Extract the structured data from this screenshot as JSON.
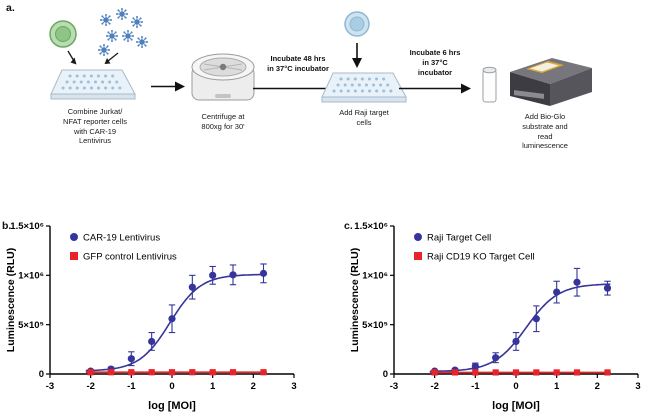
{
  "panels": {
    "a_label": "a.",
    "b_label": "b.",
    "c_label": "c."
  },
  "workflow": {
    "steps": [
      {
        "caption": "Combine Jurkat/\nNFAT reporter cells\nwith CAR-19\nLentivirus"
      },
      {
        "caption": "Centrifuge at\n800xg for 30'"
      },
      {
        "caption": "Add Raji target\ncells"
      },
      {
        "caption": "Add Bio-Glo\nsubstrate and\nread\nluminescence"
      }
    ],
    "arrow_labels": {
      "incubate_48": "Incubate 48 hrs\nin 37°C incubator",
      "incubate_6": "Incubate 6 hrs\nin 37°C\nincubator"
    }
  },
  "chart_data": [
    {
      "id": "b",
      "type": "scatter",
      "title": "",
      "xlabel": "log [MOI]",
      "ylabel": "Luminescence (RLU)",
      "xlim": [
        -3,
        3
      ],
      "ylim": [
        0,
        1500000
      ],
      "xticks": [
        -3,
        -2,
        -1,
        0,
        1,
        2,
        3
      ],
      "xtick_labels": [
        "-3",
        "-2",
        "-1",
        "0",
        "1",
        "2",
        "3"
      ],
      "yticks": [
        0,
        500000,
        1000000,
        1500000
      ],
      "ytick_labels": [
        "0",
        "5×10⁵",
        "1×10⁶",
        "1.5×10⁶"
      ],
      "legend_position": "top-left-inside",
      "grid": false,
      "series": [
        {
          "name": "CAR-19 Lentivirus",
          "color": "#35359b",
          "marker": "circle",
          "x": [
            -2,
            -1.5,
            -1,
            -0.5,
            0,
            0.5,
            1,
            1.5,
            2.25
          ],
          "y": [
            30000,
            50000,
            155000,
            330000,
            560000,
            880000,
            1000000,
            1005000,
            1020000
          ],
          "err": [
            15000,
            20000,
            70000,
            90000,
            140000,
            120000,
            90000,
            100000,
            95000
          ],
          "fit": {
            "type": "sigmoid",
            "bottom": 30000,
            "top": 1010000,
            "logec50": -0.05,
            "hill": 1.15
          }
        },
        {
          "name": "GFP control Lentivirus",
          "color": "#e62429",
          "marker": "square",
          "x": [
            -2,
            -1.5,
            -1,
            -0.5,
            0,
            0.5,
            1,
            1.5,
            2.25
          ],
          "y": [
            18000,
            18000,
            18000,
            18000,
            18000,
            18000,
            18000,
            18000,
            18000
          ],
          "err": [
            5000,
            5000,
            5000,
            5000,
            5000,
            5000,
            5000,
            5000,
            5000
          ],
          "fit": {
            "type": "flat",
            "value": 18000
          }
        }
      ]
    },
    {
      "id": "c",
      "type": "scatter",
      "title": "",
      "xlabel": "log [MOI]",
      "ylabel": "Luminescence (RLU)",
      "xlim": [
        -3,
        3
      ],
      "ylim": [
        0,
        1500000
      ],
      "xticks": [
        -3,
        -2,
        -1,
        0,
        1,
        2,
        3
      ],
      "xtick_labels": [
        "-3",
        "-2",
        "-1",
        "0",
        "1",
        "2",
        "3"
      ],
      "yticks": [
        0,
        500000,
        1000000,
        1500000
      ],
      "ytick_labels": [
        "0",
        "5×10⁵",
        "1×10⁶",
        "1.5×10⁶"
      ],
      "legend_position": "top-left-inside",
      "grid": false,
      "series": [
        {
          "name": "Raji Target Cell",
          "color": "#35359b",
          "marker": "circle",
          "x": [
            -2,
            -1.5,
            -1,
            -0.5,
            0,
            0.5,
            1,
            1.5,
            2.25
          ],
          "y": [
            30000,
            40000,
            80000,
            165000,
            330000,
            560000,
            830000,
            930000,
            870000
          ],
          "err": [
            10000,
            15000,
            30000,
            50000,
            90000,
            130000,
            110000,
            140000,
            70000
          ],
          "fit": {
            "type": "sigmoid",
            "bottom": 25000,
            "top": 915000,
            "logec50": 0.25,
            "hill": 1.1
          }
        },
        {
          "name": "Raji CD19 KO Target Cell",
          "color": "#e62429",
          "marker": "square",
          "x": [
            -2,
            -1.5,
            -1,
            -0.5,
            0,
            0.5,
            1,
            1.5,
            2.25
          ],
          "y": [
            16000,
            16000,
            16000,
            16000,
            16000,
            16000,
            16000,
            16000,
            16000
          ],
          "err": [
            4000,
            4000,
            4000,
            4000,
            4000,
            4000,
            4000,
            4000,
            4000
          ],
          "fit": {
            "type": "flat",
            "value": 16000
          }
        }
      ]
    }
  ]
}
